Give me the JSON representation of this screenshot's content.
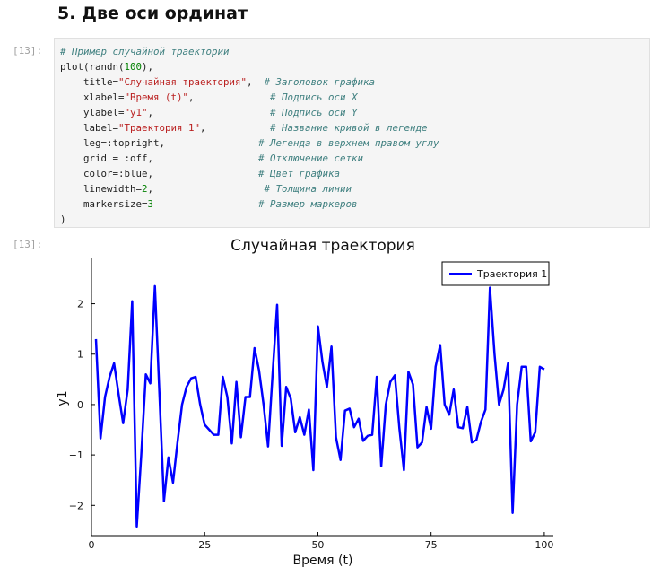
{
  "heading": "5. Две оси ординат",
  "input_prompt": "[13]:",
  "output_prompt": "[13]:",
  "code": {
    "l1_comment": "# Пример случайной траектории",
    "l2": "plot(randn(",
    "l2_num": "100",
    "l2_end": "),",
    "l3_key": "    title=",
    "l3_val": "\"Случайная траектория\"",
    "l3_sep": ",  ",
    "l3_comment": "# Заголовок графика",
    "l4_key": "    xlabel=",
    "l4_val": "\"Время (t)\"",
    "l4_sep": ",             ",
    "l4_comment": "# Подпись оси X",
    "l5_key": "    ylabel=",
    "l5_val": "\"y1\"",
    "l5_sep": ",                    ",
    "l5_comment": "# Подпись оси Y",
    "l6_key": "    label=",
    "l6_val": "\"Траектория 1\"",
    "l6_sep": ",           ",
    "l6_comment": "# Название кривой в легенде",
    "l7": "    leg=:topright,                ",
    "l7_comment": "# Легенда в верхнем правом углу",
    "l8": "    grid = :off,                  ",
    "l8_comment": "# Отключение сетки",
    "l9": "    color=:blue,                  ",
    "l9_comment": "# Цвет графика",
    "l10": "    linewidth=",
    "l10_num": "2",
    "l10_sep": ",                   ",
    "l10_comment": "# Толщина линии",
    "l11": "    markersize=",
    "l11_num": "3",
    "l11_sep": "                  ",
    "l11_comment": "# Размер маркеров",
    "l12": ")"
  },
  "chart_data": {
    "type": "line",
    "title": "Случайная траектория",
    "xlabel": "Время (t)",
    "ylabel": "y1",
    "xlim": [
      0,
      102
    ],
    "ylim": [
      -2.6,
      2.9
    ],
    "xticks": [
      0,
      25,
      50,
      75,
      100
    ],
    "yticks": [
      -2,
      -1,
      0,
      1,
      2
    ],
    "ytick_labels": [
      "−2",
      "−1",
      "0",
      "1",
      "2"
    ],
    "grid": false,
    "legend_position": "top-right",
    "color": "#0000ff",
    "series": [
      {
        "name": "Траектория 1",
        "x": [
          1,
          2,
          3,
          4,
          5,
          6,
          7,
          8,
          9,
          10,
          11,
          12,
          13,
          14,
          15,
          16,
          17,
          18,
          19,
          20,
          21,
          22,
          23,
          24,
          25,
          26,
          27,
          28,
          29,
          30,
          31,
          32,
          33,
          34,
          35,
          36,
          37,
          38,
          39,
          40,
          41,
          42,
          43,
          44,
          45,
          46,
          47,
          48,
          49,
          50,
          51,
          52,
          53,
          54,
          55,
          56,
          57,
          58,
          59,
          60,
          61,
          62,
          63,
          64,
          65,
          66,
          67,
          68,
          69,
          70,
          71,
          72,
          73,
          74,
          75,
          76,
          77,
          78,
          79,
          80,
          81,
          82,
          83,
          84,
          85,
          86,
          87,
          88,
          89,
          90,
          91,
          92,
          93,
          94,
          95,
          96,
          97,
          98,
          99,
          100
        ],
        "y": [
          1.3,
          -0.67,
          0.15,
          0.55,
          0.82,
          0.2,
          -0.37,
          0.3,
          2.05,
          -2.42,
          -1.0,
          0.6,
          0.42,
          2.35,
          0.25,
          -1.92,
          -1.05,
          -1.55,
          -0.75,
          0.0,
          0.35,
          0.52,
          0.55,
          0.0,
          -0.4,
          -0.5,
          -0.6,
          -0.6,
          0.55,
          0.15,
          -0.77,
          0.45,
          -0.65,
          0.15,
          0.15,
          1.12,
          0.68,
          0.0,
          -0.83,
          0.62,
          1.98,
          -0.82,
          0.35,
          0.12,
          -0.55,
          -0.25,
          -0.6,
          -0.1,
          -1.3,
          1.55,
          0.85,
          0.35,
          1.15,
          -0.65,
          -1.1,
          -0.12,
          -0.08,
          -0.45,
          -0.28,
          -0.72,
          -0.62,
          -0.6,
          0.55,
          -1.22,
          0.0,
          0.45,
          0.58,
          -0.47,
          -1.3,
          0.65,
          0.4,
          -0.85,
          -0.75,
          -0.05,
          -0.48,
          0.75,
          1.18,
          0.0,
          -0.2,
          0.3,
          -0.45,
          -0.47,
          -0.05,
          -0.75,
          -0.7,
          -0.35,
          -0.1,
          2.32,
          1.0,
          0.0,
          0.3,
          0.82,
          -2.15,
          0.0,
          0.75,
          0.75,
          -0.73,
          -0.55,
          0.75,
          0.7
        ]
      }
    ]
  }
}
